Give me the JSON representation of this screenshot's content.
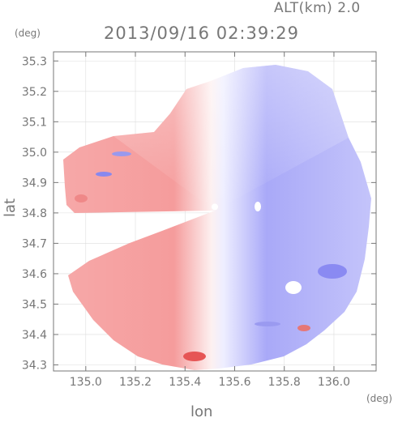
{
  "chart_data": {
    "type": "heatmap",
    "title": "2013/09/16 02:39:29",
    "subtitle": "ALT(km) 2.0",
    "xlabel": "lon",
    "ylabel": "lat",
    "x_unit": "(deg)",
    "y_unit": "(deg)",
    "xlim": [
      134.87,
      136.17
    ],
    "ylim": [
      34.28,
      35.33
    ],
    "x_ticks": [
      135.0,
      135.2,
      135.4,
      135.6,
      135.8,
      136.0
    ],
    "x_tick_labels": [
      "135.0",
      "135.2",
      "135.4",
      "135.6",
      "135.8",
      "136.0"
    ],
    "y_ticks": [
      34.3,
      34.4,
      34.5,
      34.6,
      34.7,
      34.8,
      34.9,
      35.0,
      35.1,
      35.2,
      35.3
    ],
    "y_tick_labels": [
      "34.3",
      "34.4",
      "34.5",
      "34.6",
      "34.7",
      "34.8",
      "34.9",
      "35.0",
      "35.1",
      "35.2",
      "35.3"
    ],
    "radar_center": {
      "lon": 135.52,
      "lat": 34.82
    },
    "grid": true,
    "colors": {
      "negative_toward": "#ee4444",
      "positive_away": "#5555ee",
      "near_zero": "#ffffff",
      "axis": "#777777",
      "grid": "#dddddd"
    }
  }
}
